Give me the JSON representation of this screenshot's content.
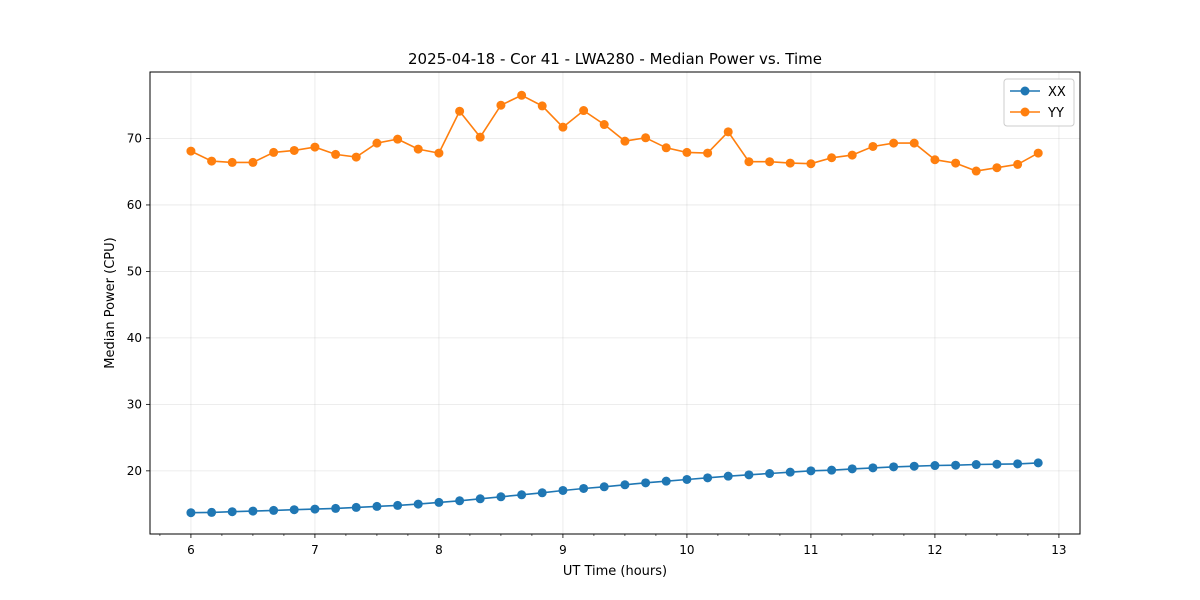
{
  "chart_data": {
    "type": "line",
    "title": "2025-04-18 - Cor 41 - LWA280 - Median Power vs. Time",
    "xlabel": "UT Time (hours)",
    "ylabel": "Median Power (CPU)",
    "xlim": [
      5.67,
      13.17
    ],
    "ylim": [
      10.5,
      80
    ],
    "xticks": [
      6,
      7,
      8,
      9,
      10,
      11,
      12,
      13
    ],
    "yticks": [
      20,
      30,
      40,
      50,
      60,
      70
    ],
    "grid": true,
    "legend_position": "top-right",
    "x": [
      6.0,
      6.167,
      6.333,
      6.5,
      6.667,
      6.833,
      7.0,
      7.167,
      7.333,
      7.5,
      7.667,
      7.833,
      8.0,
      8.167,
      8.333,
      8.5,
      8.667,
      8.833,
      9.0,
      9.167,
      9.333,
      9.5,
      9.667,
      9.833,
      10.0,
      10.167,
      10.333,
      10.5,
      10.667,
      10.833,
      11.0,
      11.167,
      11.333,
      11.5,
      11.667,
      11.833,
      12.0,
      12.167,
      12.333,
      12.5,
      12.667,
      12.833
    ],
    "series": [
      {
        "name": "XX",
        "color": "#1f77b4",
        "values": [
          13.7,
          13.75,
          13.85,
          13.95,
          14.05,
          14.15,
          14.25,
          14.35,
          14.5,
          14.65,
          14.8,
          15.0,
          15.25,
          15.5,
          15.8,
          16.1,
          16.4,
          16.7,
          17.05,
          17.35,
          17.6,
          17.9,
          18.2,
          18.45,
          18.7,
          18.95,
          19.2,
          19.4,
          19.6,
          19.8,
          20.0,
          20.1,
          20.3,
          20.45,
          20.6,
          20.7,
          20.8,
          20.85,
          20.95,
          21.0,
          21.05,
          21.2
        ]
      },
      {
        "name": "YY",
        "color": "#ff7f0e",
        "values": [
          68.1,
          66.6,
          66.4,
          66.4,
          67.9,
          68.2,
          68.7,
          67.6,
          67.2,
          69.3,
          69.9,
          68.4,
          67.8,
          74.1,
          70.2,
          75.0,
          76.5,
          74.9,
          71.7,
          74.2,
          72.1,
          69.6,
          70.1,
          68.6,
          67.9,
          67.8,
          71.0,
          66.5,
          66.5,
          66.3,
          66.2,
          67.1,
          67.5,
          68.8,
          69.3,
          69.3,
          66.8,
          66.3,
          65.1,
          65.6,
          66.1,
          67.8
        ]
      }
    ]
  }
}
